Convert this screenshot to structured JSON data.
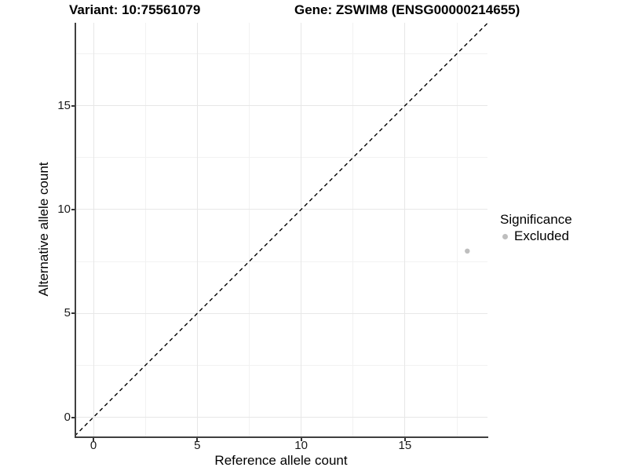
{
  "chart_data": {
    "type": "scatter",
    "title_left": "Variant: 10:75561079",
    "title_right": "Gene: ZSWIM8 (ENSG00000214655)",
    "xlabel": "Reference allele count",
    "ylabel": "Alternative allele count",
    "xlim": [
      -0.9,
      19
    ],
    "ylim": [
      -0.9,
      19
    ],
    "x_major_ticks": [
      0,
      5,
      10,
      15
    ],
    "y_major_ticks": [
      0,
      5,
      10,
      15
    ],
    "x_minor_gridlines": [
      2.5,
      7.5,
      12.5,
      17.5
    ],
    "y_minor_gridlines": [
      2.5,
      7.5,
      12.5,
      17.5
    ],
    "grid": true,
    "legend_position": "right",
    "legend_title": "Significance",
    "series": [
      {
        "name": "Excluded",
        "color": "#bebebe",
        "points": [
          {
            "x": 18,
            "y": 8
          }
        ]
      }
    ],
    "reference_line": {
      "type": "identity",
      "style": "dashed",
      "from": [
        -0.9,
        -0.9
      ],
      "to": [
        19,
        19
      ],
      "color": "#000000"
    }
  },
  "colors": {
    "background": "#ffffff",
    "axis_line": "#404040",
    "grid_major": "#e7e7e7",
    "grid_minor": "#f2f2f2",
    "text": "#000000",
    "point": "#bebebe"
  }
}
